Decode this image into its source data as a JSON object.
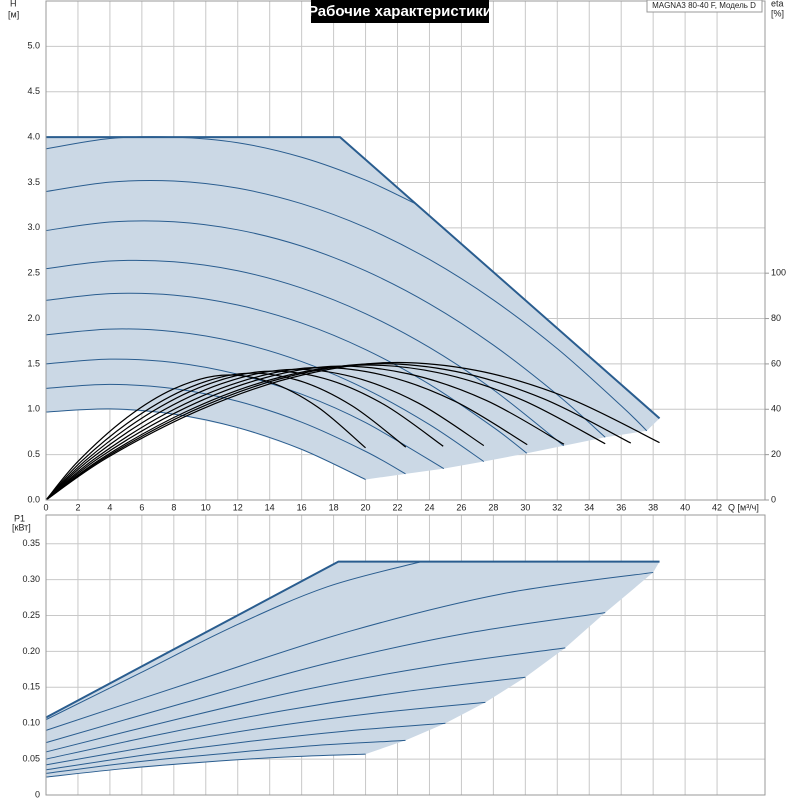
{
  "chart_data": [
    {
      "type": "line",
      "title": "Рабочие характеристики",
      "model": "MAGNA3 80-40 F, Модель D",
      "y_label": "H",
      "y_unit": "[м]",
      "y2_label": "eta",
      "y2_unit": "[%]",
      "x_label": "Q [м³/ч]",
      "xlim": [
        0,
        45
      ],
      "xticks": [
        0,
        2,
        4,
        6,
        8,
        10,
        12,
        14,
        16,
        18,
        20,
        22,
        24,
        26,
        28,
        30,
        32,
        34,
        36,
        38,
        40,
        42
      ],
      "ylim": [
        0,
        5.5
      ],
      "yticks": [
        {
          "value": 0,
          "label": "0.0"
        },
        0.5,
        {
          "value": 1,
          "label": "1.0"
        },
        1.5,
        {
          "value": 2,
          "label": "2.0"
        },
        2.5,
        {
          "value": 3,
          "label": "3.0"
        },
        3.5,
        {
          "value": 4,
          "label": "4.0"
        },
        4.5,
        {
          "value": 5,
          "label": "5.0"
        }
      ],
      "y2lim": [
        0,
        220
      ],
      "y2ticks": [
        0,
        20,
        40,
        60,
        80,
        100
      ],
      "grid": true,
      "area_color": "#cbd8e5",
      "series": [
        {
          "color": "#2a5d8f",
          "line_width": 2,
          "x": [
            0,
            18.4,
            38.4
          ],
          "values": [
            4.0,
            4.0,
            0.9
          ]
        },
        {
          "color": "#2a5d8f",
          "line_width": 1,
          "x": [
            0,
            4,
            8,
            12,
            16,
            20,
            24,
            28,
            32,
            36,
            37.6
          ],
          "values": [
            3.4,
            3.504,
            3.516,
            3.437,
            3.266,
            3.004,
            2.651,
            2.205,
            1.668,
            1.039,
            0.763
          ]
        },
        {
          "color": "#2a5d8f",
          "line_width": 1,
          "x": [
            0,
            4,
            8,
            12,
            16,
            20,
            24,
            28,
            32,
            35
          ],
          "values": [
            2.97,
            3.064,
            3.067,
            2.978,
            2.798,
            2.526,
            2.163,
            1.708,
            1.161,
            0.691
          ]
        },
        {
          "color": "#2a5d8f",
          "line_width": 1,
          "x": [
            0,
            4,
            8,
            12,
            16,
            20,
            24,
            28,
            32.4
          ],
          "values": [
            2.55,
            2.634,
            2.626,
            2.527,
            2.336,
            2.054,
            1.681,
            1.215,
            0.598
          ]
        },
        {
          "color": "#2a5d8f",
          "line_width": 1,
          "x": [
            0,
            4,
            8,
            12,
            16,
            20,
            24,
            28,
            30.1
          ],
          "values": [
            2.2,
            2.274,
            2.258,
            2.149,
            1.95,
            1.658,
            1.275,
            0.801,
            0.515
          ]
        },
        {
          "color": "#2a5d8f",
          "line_width": 1,
          "x": [
            0,
            4,
            8,
            12,
            16,
            20,
            24,
            27.4
          ],
          "values": [
            1.82,
            1.884,
            1.856,
            1.737,
            1.526,
            1.224,
            0.831,
            0.424
          ]
        },
        {
          "color": "#2a5d8f",
          "line_width": 1,
          "x": [
            0,
            4,
            8,
            12,
            16,
            20,
            24.9
          ],
          "values": [
            1.5,
            1.553,
            1.516,
            1.386,
            1.166,
            0.853,
            0.346
          ]
        },
        {
          "color": "#2a5d8f",
          "line_width": 1,
          "x": [
            0,
            4,
            8,
            12,
            16,
            20,
            22.5
          ],
          "values": [
            1.23,
            1.274,
            1.227,
            1.088,
            0.858,
            0.536,
            0.288
          ]
        },
        {
          "color": "#2a5d8f",
          "line_width": 1,
          "x": [
            0,
            4,
            8,
            12,
            16,
            20
          ],
          "values": [
            0.97,
            1.004,
            0.947,
            0.798,
            0.558,
            0.226
          ]
        },
        {
          "color": "#2a5d8f",
          "line_width": 1,
          "x": [
            0,
            4,
            8,
            12,
            16,
            20,
            23.15
          ],
          "values": [
            3.87,
            3.984,
            4.0,
            3.938,
            3.778,
            3.526,
            3.263
          ]
        },
        {
          "color": "#000000",
          "line_width": 1.2,
          "axis": "y2",
          "x": [
            0,
            2,
            5,
            8,
            11,
            14,
            17,
            20
          ],
          "values": [
            0,
            17,
            36,
            49,
            55,
            52,
            41,
            23
          ]
        },
        {
          "color": "#000000",
          "line_width": 1.2,
          "axis": "y2",
          "x": [
            0,
            2.25,
            5.63,
            9.01,
            12.39,
            15.76,
            19.14,
            22.52
          ],
          "values": [
            0,
            17.3,
            36.5,
            49.7,
            55.8,
            52.8,
            41.6,
            23.3
          ]
        },
        {
          "color": "#000000",
          "line_width": 1.2,
          "axis": "y2",
          "x": [
            0,
            2.49,
            6.22,
            9.94,
            13.67,
            17.4,
            21.13,
            24.86
          ],
          "values": [
            0,
            17.5,
            37.1,
            50.5,
            56.7,
            53.6,
            42.2,
            23.7
          ]
        },
        {
          "color": "#000000",
          "line_width": 1.2,
          "axis": "y2",
          "x": [
            0,
            2.74,
            6.85,
            10.96,
            15.07,
            19.18,
            23.29,
            27.4
          ],
          "values": [
            0,
            17.8,
            37.6,
            51.2,
            57.5,
            54.3,
            42.8,
            24.0
          ]
        },
        {
          "color": "#000000",
          "line_width": 1.2,
          "axis": "y2",
          "x": [
            0,
            3.01,
            7.53,
            12.05,
            16.57,
            21.08,
            25.6,
            30.12
          ],
          "values": [
            0,
            18.0,
            38.2,
            51.9,
            58.3,
            55.1,
            43.5,
            24.4
          ]
        },
        {
          "color": "#000000",
          "line_width": 1.2,
          "axis": "y2",
          "x": [
            0,
            3.24,
            8.11,
            12.97,
            17.83,
            22.69,
            27.56,
            32.42
          ],
          "values": [
            0,
            18.2,
            38.5,
            52.4,
            58.9,
            55.6,
            43.9,
            24.6
          ]
        },
        {
          "color": "#000000",
          "line_width": 1.2,
          "axis": "y2",
          "x": [
            0,
            3.5,
            8.75,
            14,
            19.25,
            24.5,
            29.75,
            35
          ],
          "values": [
            0,
            18.4,
            38.9,
            52.9,
            59.4,
            56.2,
            44.3,
            24.8
          ]
        },
        {
          "color": "#000000",
          "line_width": 1.2,
          "axis": "y2",
          "x": [
            0,
            3.66,
            9.15,
            14.64,
            20.13,
            25.62,
            31.11,
            36.6
          ],
          "values": [
            0,
            18.5,
            39.2,
            53.4,
            60.0,
            56.7,
            44.7,
            25.1
          ]
        },
        {
          "color": "#000000",
          "line_width": 1.2,
          "axis": "y2",
          "x": [
            0,
            3.84,
            9.6,
            15.36,
            21.12,
            26.88,
            32.64,
            38.4
          ],
          "values": [
            0,
            18.7,
            39.6,
            53.9,
            60.5,
            57.2,
            45.1,
            25.3
          ]
        }
      ]
    },
    {
      "type": "line",
      "y_label": "P1",
      "y_unit": "[кВт]",
      "xlim": [
        0,
        45
      ],
      "ylim": [
        0,
        0.39
      ],
      "yticks": [
        0,
        0.05,
        {
          "value": 0.1,
          "label": "0.10"
        },
        0.15,
        {
          "value": 0.2,
          "label": "0.20"
        },
        0.25,
        {
          "value": 0.3,
          "label": "0.30"
        },
        0.35
      ],
      "grid": true,
      "area_color": "#cbd8e5",
      "series": [
        {
          "color": "#2a5d8f",
          "line_width": 2,
          "x": [
            0,
            18.3,
            38.4
          ],
          "values": [
            0.108,
            0.325,
            0.325
          ]
        },
        {
          "color": "#2a5d8f",
          "line_width": 1,
          "x": [
            0,
            9.5,
            19,
            28.5,
            38
          ],
          "values": [
            0.09,
            0.16,
            0.228,
            0.28,
            0.31
          ]
        },
        {
          "color": "#2a5d8f",
          "line_width": 1,
          "x": [
            0,
            8.75,
            17.5,
            26.25,
            35
          ],
          "values": [
            0.073,
            0.129,
            0.183,
            0.225,
            0.254
          ]
        },
        {
          "color": "#2a5d8f",
          "line_width": 1,
          "x": [
            0,
            8.1,
            16.25,
            24.4,
            32.5
          ],
          "values": [
            0.06,
            0.105,
            0.147,
            0.18,
            0.205
          ]
        },
        {
          "color": "#2a5d8f",
          "line_width": 1,
          "x": [
            0,
            7.5,
            15,
            22.5,
            30
          ],
          "values": [
            0.05,
            0.086,
            0.118,
            0.144,
            0.164
          ]
        },
        {
          "color": "#2a5d8f",
          "line_width": 1,
          "x": [
            0,
            6.9,
            13.75,
            20.6,
            27.5
          ],
          "values": [
            0.042,
            0.069,
            0.094,
            0.114,
            0.129
          ]
        },
        {
          "color": "#2a5d8f",
          "line_width": 1,
          "x": [
            0,
            6.25,
            12.5,
            18.75,
            25
          ],
          "values": [
            0.035,
            0.056,
            0.074,
            0.089,
            0.1
          ]
        },
        {
          "color": "#2a5d8f",
          "line_width": 1,
          "x": [
            0,
            5.6,
            11.25,
            16.9,
            22.5
          ],
          "values": [
            0.03,
            0.046,
            0.058,
            0.069,
            0.076
          ]
        },
        {
          "color": "#2a5d8f",
          "line_width": 1,
          "x": [
            0,
            5,
            10,
            15,
            20
          ],
          "values": [
            0.025,
            0.037,
            0.046,
            0.053,
            0.057
          ]
        },
        {
          "color": "#2a5d8f",
          "line_width": 1,
          "x": [
            0,
            5.9,
            11.75,
            17.6,
            23.5
          ],
          "values": [
            0.105,
            0.17,
            0.235,
            0.29,
            0.325
          ]
        }
      ]
    }
  ]
}
